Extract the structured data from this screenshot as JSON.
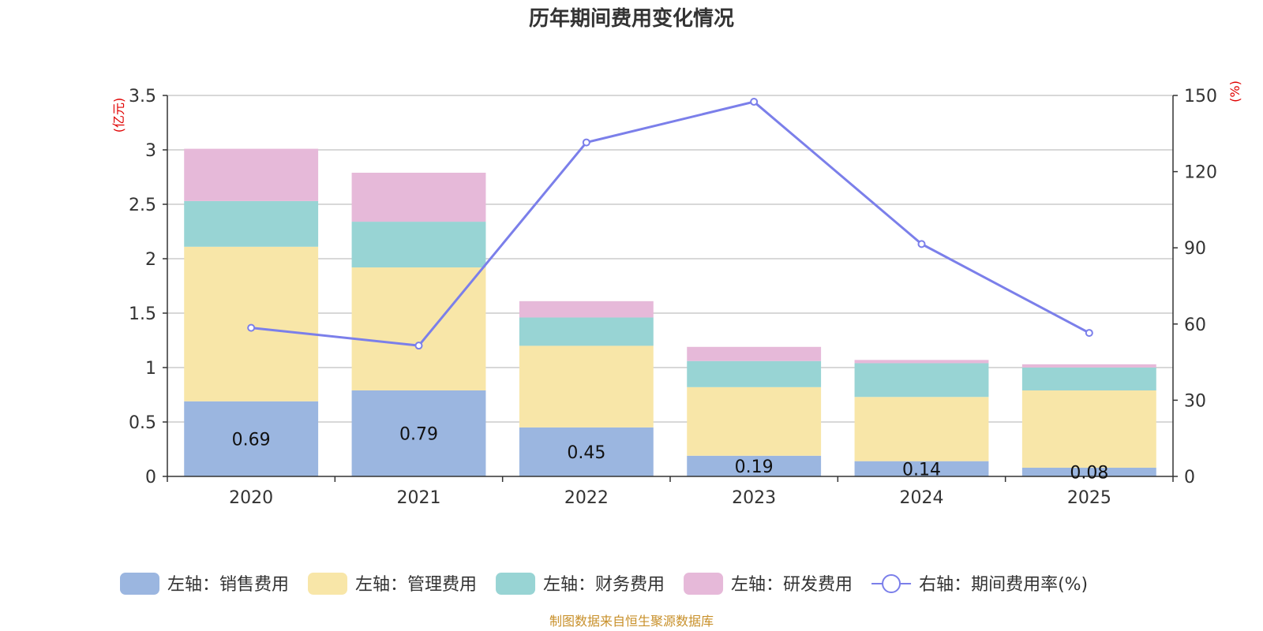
{
  "chart_data": {
    "type": "bar",
    "title": "历年期间费用变化情况",
    "categories": [
      "2020",
      "2021",
      "2022",
      "2023",
      "2024",
      "2025"
    ],
    "left_axis": {
      "unit": "(亿元)",
      "ylim": [
        0,
        3.5
      ],
      "ticks": [
        "0",
        "0.5",
        "1",
        "1.5",
        "2",
        "2.5",
        "3",
        "3.5"
      ]
    },
    "right_axis": {
      "unit": "(%)",
      "ylim": [
        0,
        150
      ],
      "ticks": [
        "0",
        "30",
        "60",
        "90",
        "120",
        "150"
      ]
    },
    "series": [
      {
        "name": "左轴：销售费用",
        "type": "bar",
        "axis": "left",
        "color": "#9bb6e0",
        "values": [
          0.69,
          0.79,
          0.45,
          0.19,
          0.14,
          0.08
        ],
        "labels": [
          "0.69",
          "0.79",
          "0.45",
          "0.19",
          "0.14",
          "0.08"
        ]
      },
      {
        "name": "左轴：管理费用",
        "type": "bar",
        "axis": "left",
        "color": "#f8e6a8",
        "values": [
          1.42,
          1.13,
          0.75,
          0.63,
          0.59,
          0.71
        ]
      },
      {
        "name": "左轴：财务费用",
        "type": "bar",
        "axis": "left",
        "color": "#98d4d4",
        "values": [
          0.42,
          0.42,
          0.26,
          0.24,
          0.31,
          0.21
        ]
      },
      {
        "name": "左轴：研发费用",
        "type": "bar",
        "axis": "left",
        "color": "#e6b9d9",
        "values": [
          0.48,
          0.45,
          0.15,
          0.13,
          0.03,
          0.03
        ]
      },
      {
        "name": "右轴：期间费用率(%)",
        "type": "line",
        "axis": "right",
        "color": "#7b7fea",
        "values": [
          58.5,
          51.5,
          131.5,
          147.5,
          91.5,
          56.5
        ]
      }
    ]
  },
  "footer": {
    "source": "制图数据来自恒生聚源数据库"
  }
}
